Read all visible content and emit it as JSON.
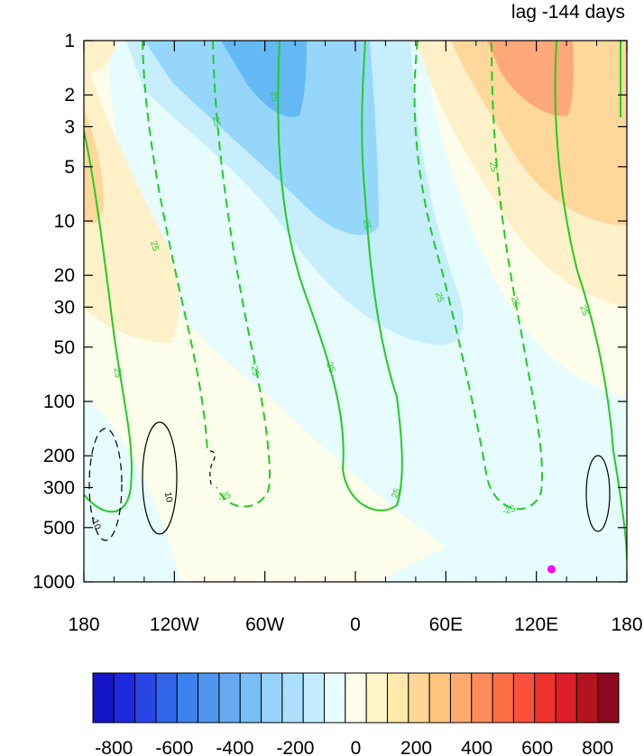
{
  "chart_data": {
    "type": "heatmap",
    "title": "lag -144 days",
    "xlabel": "",
    "ylabel": "",
    "x_axis": {
      "range": [
        -180,
        180
      ],
      "ticks": [
        {
          "value": -180,
          "label": "180"
        },
        {
          "value": -120,
          "label": "120W"
        },
        {
          "value": -60,
          "label": "60W"
        },
        {
          "value": 0,
          "label": "0"
        },
        {
          "value": 60,
          "label": "60E"
        },
        {
          "value": 120,
          "label": "120E"
        },
        {
          "value": 180,
          "label": "180"
        }
      ]
    },
    "y_axis": {
      "scale": "log",
      "reversed": true,
      "range": [
        1,
        1000
      ],
      "ticks": [
        {
          "value": 1,
          "label": "1"
        },
        {
          "value": 2,
          "label": "2"
        },
        {
          "value": 3,
          "label": "3"
        },
        {
          "value": 5,
          "label": "5"
        },
        {
          "value": 10,
          "label": "10"
        },
        {
          "value": 20,
          "label": "20"
        },
        {
          "value": 30,
          "label": "30"
        },
        {
          "value": 50,
          "label": "50"
        },
        {
          "value": 100,
          "label": "100"
        },
        {
          "value": 200,
          "label": "200"
        },
        {
          "value": 300,
          "label": "300"
        },
        {
          "value": 500,
          "label": "500"
        },
        {
          "value": 1000,
          "label": "1000"
        }
      ]
    },
    "colorbar": {
      "colors": [
        "#1414c8",
        "#1e28dc",
        "#2846e6",
        "#3264ea",
        "#3c82ee",
        "#5096f0",
        "#64aaf2",
        "#78bef4",
        "#96d2fa",
        "#aae0fc",
        "#c4ecfd",
        "#e6fcff",
        "#fcfdea",
        "#fef6c8",
        "#fee8aa",
        "#fed696",
        "#fec47d",
        "#feaa6e",
        "#fe8c5a",
        "#fc6e46",
        "#fa503c",
        "#f0322d",
        "#dc1e28",
        "#b4141e",
        "#8c0a1e"
      ],
      "tick_labels": [
        "-800",
        "-600",
        "-400",
        "-200",
        "0",
        "200",
        "400",
        "600",
        "800"
      ],
      "tick_values": [
        -800,
        -600,
        -400,
        -200,
        0,
        200,
        400,
        600,
        800
      ],
      "range": [
        -800,
        800
      ]
    },
    "contour_labels": [
      "25",
      "-25",
      "10",
      "-10"
    ],
    "shading_level_colors": {
      "blue2": "#64b8f4",
      "blue1": "#96d6fa",
      "blue0": "#c6eefd",
      "pale_blue": "#e6fcff",
      "pale_yellow": "#fcfdea",
      "yellow1": "#fef0c8",
      "orange1": "#fed89b",
      "orange2": "#fea87a"
    },
    "marker": {
      "lon": 130,
      "pressure": 850,
      "color": "#ff00ff"
    },
    "contour_color": "#22cc22"
  }
}
